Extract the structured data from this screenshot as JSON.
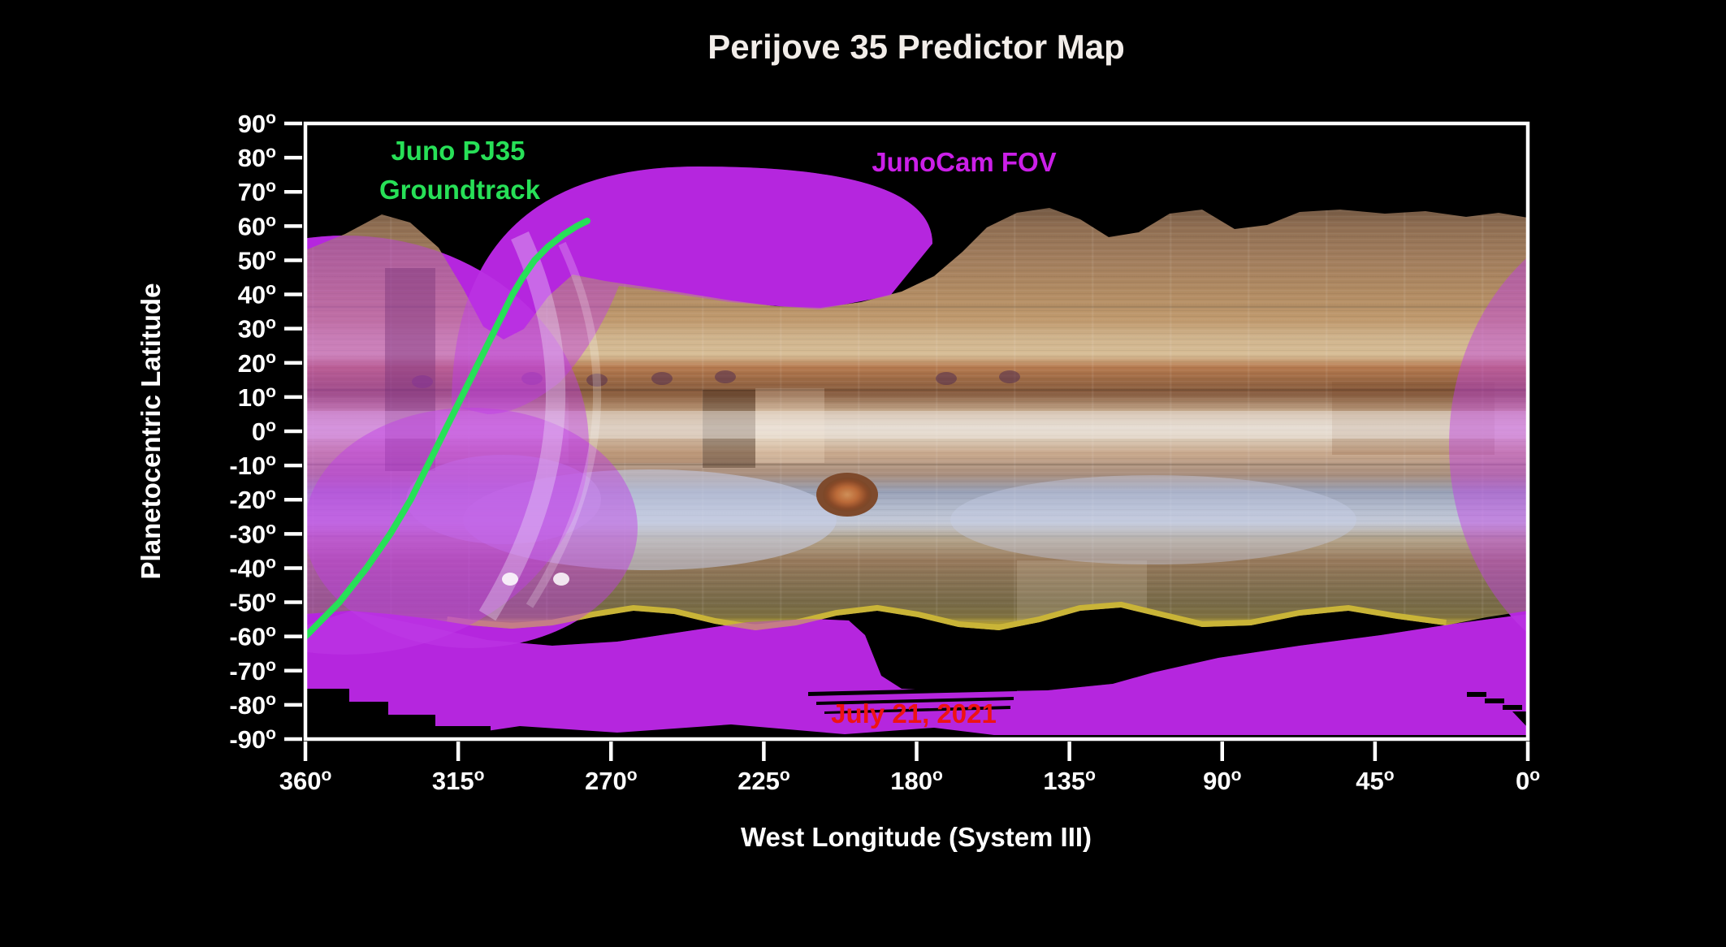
{
  "title": "Perijove 35 Predictor Map",
  "annotations": {
    "groundtrack_line1": "Juno PJ35",
    "groundtrack_line2": "Groundtrack",
    "fov": "JunoCam FOV",
    "date": "July 21, 2021"
  },
  "axes": {
    "x_title": "West Longitude (System III)",
    "y_title": "Planetocentric Latitude",
    "degree_glyph": "o",
    "x_ticks": [
      360,
      315,
      270,
      225,
      180,
      135,
      90,
      45,
      0
    ],
    "y_ticks": [
      90,
      80,
      70,
      60,
      50,
      40,
      30,
      20,
      10,
      0,
      -10,
      -20,
      -30,
      -40,
      -50,
      -60,
      -70,
      -80,
      -90
    ],
    "x_range": [
      360,
      0
    ],
    "y_range": [
      -90,
      90
    ]
  },
  "colors": {
    "background": "#000000",
    "frame": "#ffffff",
    "groundtrack_green": "#27e057",
    "fov_opaque": "#ad13d6",
    "fov_translucent": "rgba(192,62,230,0.46)",
    "title_text": "#f2ede9",
    "fov_label_text": "#cb1fe8",
    "date_text": "#ee1313",
    "map_yellow_fringe": "#c9b437"
  },
  "chart_data": {
    "type": "line",
    "title": "Perijove 35 Predictor Map",
    "xlabel": "West Longitude (System III)",
    "ylabel": "Planetocentric Latitude",
    "xlim": [
      360,
      0
    ],
    "ylim": [
      -90,
      90
    ],
    "x_tick_step": 45,
    "y_tick_step": 10,
    "grid": false,
    "x_axis_reversed": true,
    "series": [
      {
        "name": "Juno PJ35 Groundtrack",
        "color": "#27e057",
        "points_lon_lat": [
          [
            360,
            -60
          ],
          [
            355,
            -55
          ],
          [
            350,
            -50
          ],
          [
            346,
            -45
          ],
          [
            342,
            -40
          ],
          [
            338.5,
            -35
          ],
          [
            335,
            -30
          ],
          [
            332,
            -25
          ],
          [
            329,
            -20
          ],
          [
            326.5,
            -15
          ],
          [
            324,
            -10
          ],
          [
            321.5,
            -5
          ],
          [
            319,
            0
          ],
          [
            316.5,
            5
          ],
          [
            314,
            10
          ],
          [
            311.5,
            15
          ],
          [
            309,
            20
          ],
          [
            306.5,
            25
          ],
          [
            304,
            30
          ],
          [
            301.5,
            35
          ],
          [
            299,
            40
          ],
          [
            296,
            45
          ],
          [
            292.5,
            50
          ],
          [
            288.5,
            54
          ],
          [
            284,
            57.5
          ],
          [
            280,
            60
          ],
          [
            277,
            61.5
          ]
        ]
      }
    ],
    "overlays": [
      {
        "name": "JunoCam FOV",
        "color": "#ad13d6",
        "description": "Magenta shaded field-of-view coverage: large lobe over north mid-latitudes near 260-330 W, full west-limb swath, south polar band below -60 latitude across all longitudes, and east-limb wedge near 0-20 W"
      },
      {
        "name": "Jupiter cylindrical basemap mosaic",
        "lat_extent": [
          -62,
          62
        ],
        "features": [
          "Great Red Spot near 187 W, -19 lat",
          "banded zones and belts",
          "yellow south fringe"
        ]
      }
    ],
    "annotation_date": "July 21, 2021"
  }
}
